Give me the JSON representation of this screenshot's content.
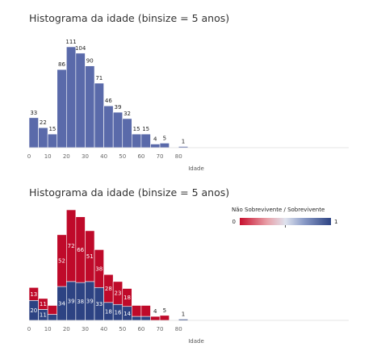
{
  "chart_data": [
    {
      "type": "bar",
      "title": "Histograma da idade (binsize = 5 anos)",
      "xlabel": "Idade",
      "x_ticks": [
        "0",
        "10",
        "20",
        "30",
        "40",
        "50",
        "60",
        "70",
        "80"
      ],
      "bin_width": 5,
      "bins": [
        0,
        5,
        10,
        15,
        20,
        25,
        30,
        35,
        40,
        45,
        50,
        55,
        60,
        65,
        70,
        75,
        80
      ],
      "values": [
        33,
        22,
        15,
        86,
        111,
        104,
        90,
        71,
        46,
        39,
        32,
        15,
        15,
        4,
        5,
        0,
        1
      ],
      "bar_color": "#5a6aaa"
    },
    {
      "type": "bar",
      "stacked": true,
      "title": "Histograma da idade (binsize = 5 anos)",
      "xlabel": "Idade",
      "x_ticks": [
        "0",
        "10",
        "20",
        "30",
        "40",
        "50",
        "60",
        "70",
        "80"
      ],
      "bin_width": 5,
      "bins": [
        0,
        5,
        10,
        15,
        20,
        25,
        30,
        35,
        40,
        45,
        50,
        55,
        60,
        65,
        70,
        75,
        80
      ],
      "series": [
        {
          "name": "Sobrevivente",
          "color": "#2d4383",
          "values": [
            20,
            11,
            6,
            34,
            39,
            38,
            39,
            33,
            18,
            16,
            14,
            4,
            4,
            0,
            0,
            0,
            1
          ],
          "labels": [
            "20",
            "11",
            "",
            "34",
            "39",
            "38",
            "39",
            "33",
            "18",
            "16",
            "14",
            "",
            "",
            "",
            "",
            "",
            ""
          ]
        },
        {
          "name": "Não Sobrevivente",
          "color": "#bf0a2a",
          "values": [
            13,
            11,
            9,
            52,
            72,
            66,
            51,
            38,
            28,
            23,
            18,
            11,
            11,
            4,
            5,
            0,
            0
          ],
          "labels": [
            "13",
            "11",
            "",
            "52",
            "72",
            "66",
            "51",
            "38",
            "28",
            "23",
            "18",
            "",
            "",
            "",
            "",
            "",
            ""
          ]
        }
      ],
      "outside_labels": [
        "",
        "",
        "",
        "",
        "",
        "",
        "",
        "",
        "",
        "",
        "",
        "",
        "",
        "4",
        "5",
        "",
        "1"
      ],
      "legend": {
        "title": "Não Sobrevivente / Sobrevivente",
        "min_label": "0",
        "max_label": "1",
        "colors": [
          "#c8102e",
          "#e8a0a8",
          "#dfe3ee",
          "#8b9cc8",
          "#2d4383"
        ],
        "placement": "top-right"
      }
    }
  ]
}
